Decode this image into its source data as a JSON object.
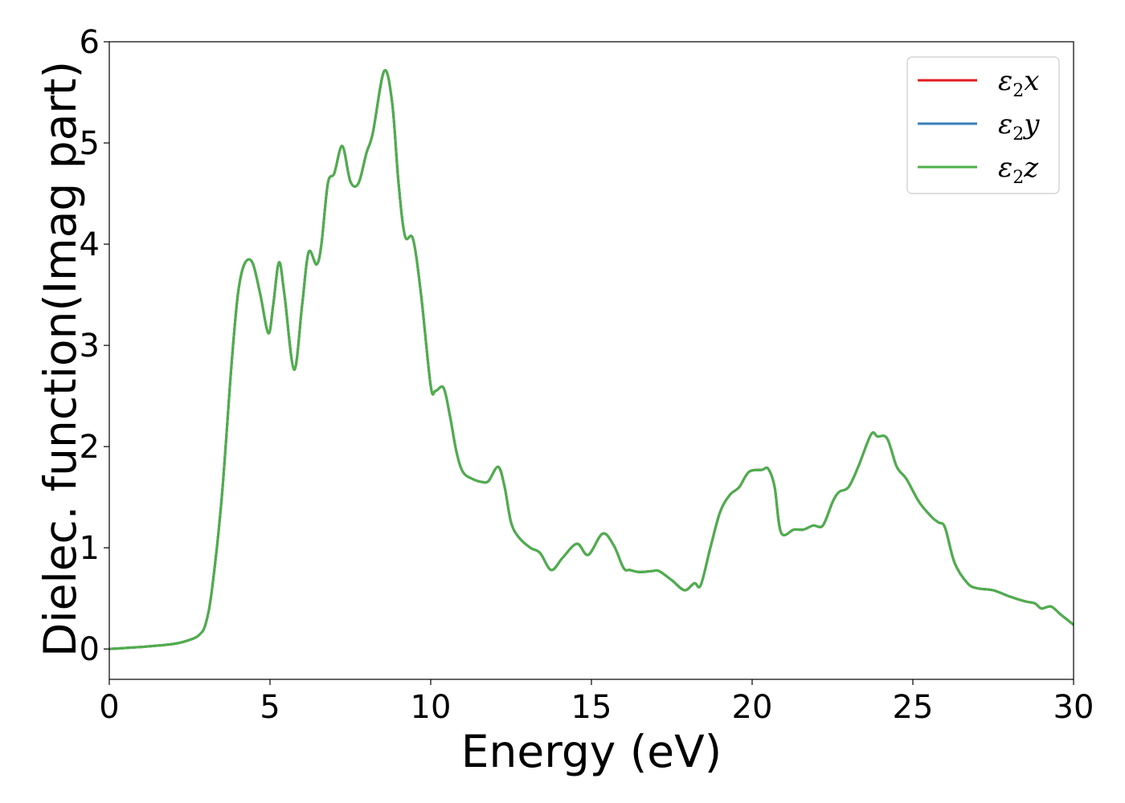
{
  "chart_data": {
    "type": "line",
    "title": "",
    "xlabel": "Energy (eV)",
    "ylabel": "Dielec. function(Imag part)",
    "xlim": [
      0,
      30
    ],
    "ylim": [
      -0.3,
      6
    ],
    "xticks": [
      0,
      5,
      10,
      15,
      20,
      25,
      30
    ],
    "yticks": [
      0,
      1,
      2,
      3,
      4,
      5,
      6
    ],
    "grid": false,
    "legend_position": "top-right",
    "x": [
      0,
      1,
      2,
      2.5,
      2.8,
      3.0,
      3.2,
      3.5,
      3.8,
      4.0,
      4.2,
      4.45,
      4.7,
      4.95,
      5.1,
      5.28,
      5.45,
      5.75,
      6.0,
      6.2,
      6.45,
      6.6,
      6.8,
      7.0,
      7.25,
      7.5,
      7.75,
      8.0,
      8.2,
      8.55,
      8.8,
      9.0,
      9.2,
      9.45,
      9.7,
      10.0,
      10.15,
      10.4,
      10.6,
      10.8,
      11.0,
      11.3,
      11.6,
      11.8,
      12.1,
      12.3,
      12.5,
      12.75,
      13.1,
      13.4,
      13.75,
      14.1,
      14.55,
      14.9,
      15.35,
      15.7,
      16.0,
      16.2,
      16.5,
      16.9,
      17.1,
      17.5,
      17.9,
      18.2,
      18.4,
      18.7,
      19.0,
      19.3,
      19.6,
      19.9,
      20.3,
      20.5,
      20.7,
      20.9,
      21.3,
      21.6,
      21.9,
      22.2,
      22.5,
      22.7,
      23.0,
      23.3,
      23.7,
      23.9,
      24.2,
      24.5,
      24.8,
      25.2,
      25.6,
      25.8,
      26.0,
      26.3,
      26.7,
      27.0,
      27.5,
      28.0,
      28.5,
      28.8,
      29.0,
      29.3,
      29.6,
      30.0
    ],
    "series": [
      {
        "name": "ε₂x",
        "label_base": "ε",
        "label_sub": "2",
        "label_var": "x",
        "color": "#e41a1c",
        "y": [
          0.0,
          0.02,
          0.05,
          0.09,
          0.14,
          0.25,
          0.6,
          1.5,
          2.8,
          3.5,
          3.8,
          3.82,
          3.5,
          3.12,
          3.4,
          3.82,
          3.5,
          2.76,
          3.4,
          3.92,
          3.8,
          4.0,
          4.6,
          4.7,
          4.97,
          4.62,
          4.6,
          4.9,
          5.1,
          5.71,
          5.4,
          4.6,
          4.08,
          4.05,
          3.5,
          2.6,
          2.55,
          2.58,
          2.3,
          1.95,
          1.75,
          1.68,
          1.65,
          1.66,
          1.8,
          1.6,
          1.25,
          1.1,
          1.0,
          0.95,
          0.78,
          0.9,
          1.04,
          0.93,
          1.14,
          1.02,
          0.8,
          0.78,
          0.76,
          0.77,
          0.77,
          0.68,
          0.58,
          0.65,
          0.63,
          1.0,
          1.35,
          1.52,
          1.6,
          1.75,
          1.77,
          1.78,
          1.6,
          1.15,
          1.18,
          1.18,
          1.22,
          1.22,
          1.45,
          1.55,
          1.6,
          1.8,
          2.12,
          2.1,
          2.08,
          1.8,
          1.68,
          1.45,
          1.3,
          1.25,
          1.2,
          0.85,
          0.65,
          0.6,
          0.58,
          0.52,
          0.47,
          0.45,
          0.4,
          0.42,
          0.34,
          0.24
        ]
      },
      {
        "name": "ε₂y",
        "label_base": "ε",
        "label_sub": "2",
        "label_var": "y",
        "color": "#377eb8",
        "y": [
          0.0,
          0.02,
          0.05,
          0.09,
          0.14,
          0.25,
          0.6,
          1.5,
          2.8,
          3.5,
          3.8,
          3.82,
          3.5,
          3.12,
          3.4,
          3.82,
          3.5,
          2.76,
          3.4,
          3.92,
          3.8,
          4.0,
          4.6,
          4.7,
          4.97,
          4.62,
          4.6,
          4.9,
          5.1,
          5.71,
          5.4,
          4.6,
          4.08,
          4.05,
          3.5,
          2.6,
          2.55,
          2.58,
          2.3,
          1.95,
          1.75,
          1.68,
          1.65,
          1.66,
          1.8,
          1.6,
          1.25,
          1.1,
          1.0,
          0.95,
          0.78,
          0.9,
          1.04,
          0.93,
          1.14,
          1.02,
          0.8,
          0.78,
          0.76,
          0.77,
          0.77,
          0.68,
          0.58,
          0.65,
          0.63,
          1.0,
          1.35,
          1.52,
          1.6,
          1.75,
          1.77,
          1.78,
          1.6,
          1.15,
          1.18,
          1.18,
          1.22,
          1.22,
          1.45,
          1.55,
          1.6,
          1.8,
          2.12,
          2.1,
          2.08,
          1.8,
          1.68,
          1.45,
          1.3,
          1.25,
          1.2,
          0.85,
          0.65,
          0.6,
          0.58,
          0.52,
          0.47,
          0.45,
          0.4,
          0.42,
          0.34,
          0.24
        ]
      },
      {
        "name": "ε₂z",
        "label_base": "ε",
        "label_sub": "2",
        "label_var": "z",
        "color": "#4daf4a",
        "y": [
          0.0,
          0.02,
          0.05,
          0.09,
          0.14,
          0.25,
          0.6,
          1.5,
          2.8,
          3.5,
          3.8,
          3.82,
          3.5,
          3.12,
          3.4,
          3.82,
          3.5,
          2.76,
          3.4,
          3.92,
          3.8,
          4.0,
          4.6,
          4.7,
          4.97,
          4.62,
          4.6,
          4.9,
          5.1,
          5.71,
          5.4,
          4.6,
          4.08,
          4.05,
          3.5,
          2.6,
          2.55,
          2.58,
          2.3,
          1.95,
          1.75,
          1.68,
          1.65,
          1.66,
          1.8,
          1.6,
          1.25,
          1.1,
          1.0,
          0.95,
          0.78,
          0.9,
          1.04,
          0.93,
          1.14,
          1.02,
          0.8,
          0.78,
          0.76,
          0.77,
          0.77,
          0.68,
          0.58,
          0.65,
          0.63,
          1.0,
          1.35,
          1.52,
          1.6,
          1.75,
          1.77,
          1.78,
          1.6,
          1.15,
          1.18,
          1.18,
          1.22,
          1.22,
          1.45,
          1.55,
          1.6,
          1.8,
          2.12,
          2.1,
          2.08,
          1.8,
          1.68,
          1.45,
          1.3,
          1.25,
          1.2,
          0.85,
          0.65,
          0.6,
          0.58,
          0.52,
          0.47,
          0.45,
          0.4,
          0.42,
          0.34,
          0.24
        ]
      }
    ]
  }
}
